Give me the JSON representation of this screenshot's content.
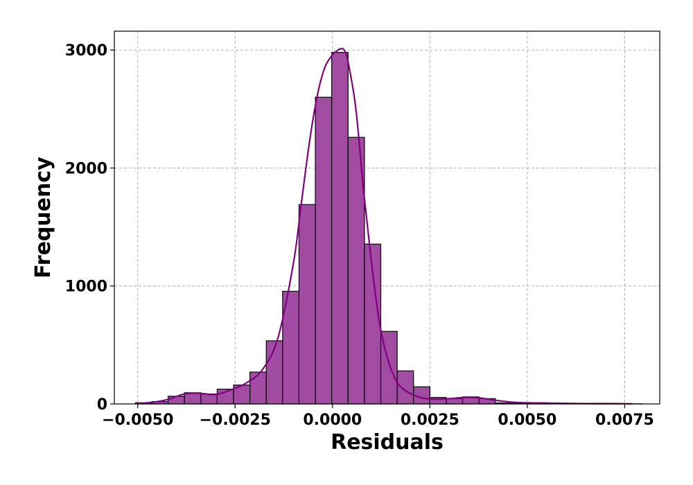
{
  "chart_data": {
    "type": "bar",
    "subtype": "histogram-with-kde",
    "title": "",
    "xlabel": "Residuals",
    "ylabel": "Frequency",
    "xlim": [
      -0.0056,
      0.0084
    ],
    "ylim": [
      0,
      3160
    ],
    "grid": true,
    "x_ticks": [
      -0.005,
      -0.0025,
      0.0,
      0.0025,
      0.005,
      0.0075
    ],
    "x_tick_labels": [
      "−0.0050",
      "−0.0025",
      "0.0000",
      "0.0025",
      "0.0050",
      "0.0075"
    ],
    "y_ticks": [
      0,
      1000,
      2000,
      3000
    ],
    "y_tick_labels": [
      "0",
      "1000",
      "2000",
      "3000"
    ],
    "colors": {
      "bar_fill": "#a24ba2",
      "bar_edge": "#000000",
      "kde_line": "#800080",
      "grid": "#b0b0b0"
    },
    "bin_width": 0.00042,
    "bins": [
      {
        "x0": -0.00506,
        "count": 10
      },
      {
        "x0": -0.00464,
        "count": 20
      },
      {
        "x0": -0.00422,
        "count": 65
      },
      {
        "x0": -0.0038,
        "count": 95
      },
      {
        "x0": -0.00338,
        "count": 85
      },
      {
        "x0": -0.00296,
        "count": 125
      },
      {
        "x0": -0.00254,
        "count": 160
      },
      {
        "x0": -0.00212,
        "count": 270
      },
      {
        "x0": -0.0017,
        "count": 535
      },
      {
        "x0": -0.00128,
        "count": 955
      },
      {
        "x0": -0.00086,
        "count": 1690
      },
      {
        "x0": -0.00044,
        "count": 2600
      },
      {
        "x0": -2e-05,
        "count": 2980
      },
      {
        "x0": 0.0004,
        "count": 2260
      },
      {
        "x0": 0.00082,
        "count": 1355
      },
      {
        "x0": 0.00124,
        "count": 615
      },
      {
        "x0": 0.00166,
        "count": 280
      },
      {
        "x0": 0.00208,
        "count": 145
      },
      {
        "x0": 0.0025,
        "count": 55
      },
      {
        "x0": 0.00292,
        "count": 45
      },
      {
        "x0": 0.00334,
        "count": 60
      },
      {
        "x0": 0.00376,
        "count": 45
      },
      {
        "x0": 0.00418,
        "count": 8
      },
      {
        "x0": 0.0046,
        "count": 5
      },
      {
        "x0": 0.00502,
        "count": 5
      },
      {
        "x0": 0.00544,
        "count": 5
      },
      {
        "x0": 0.00586,
        "count": 3
      },
      {
        "x0": 0.00628,
        "count": 2
      },
      {
        "x0": 0.0067,
        "count": 2
      },
      {
        "x0": 0.00712,
        "count": 1
      },
      {
        "x0": 0.00754,
        "count": 1
      }
    ],
    "kde": {
      "x": [
        -0.005,
        -0.0046,
        -0.0042,
        -0.0038,
        -0.0034,
        -0.003,
        -0.0026,
        -0.0022,
        -0.0018,
        -0.0014,
        -0.001,
        -0.0008,
        -0.0006,
        -0.0004,
        -0.0002,
        0.0,
        0.0001,
        0.0002,
        0.0003,
        0.0004,
        0.0006,
        0.0008,
        0.001,
        0.0012,
        0.0014,
        0.0016,
        0.0018,
        0.0022,
        0.0026,
        0.003,
        0.0034,
        0.0038,
        0.0042,
        0.0046,
        0.005,
        0.0054,
        0.0058,
        0.0062,
        0.0066,
        0.007,
        0.0074,
        0.0077
      ],
      "y": [
        5,
        15,
        40,
        85,
        90,
        80,
        120,
        180,
        290,
        560,
        1200,
        1700,
        2200,
        2600,
        2850,
        2960,
        2990,
        3010,
        3000,
        2900,
        2500,
        1800,
        1200,
        700,
        400,
        220,
        130,
        60,
        40,
        45,
        55,
        50,
        30,
        15,
        10,
        8,
        6,
        4,
        3,
        3,
        2,
        1
      ]
    }
  }
}
